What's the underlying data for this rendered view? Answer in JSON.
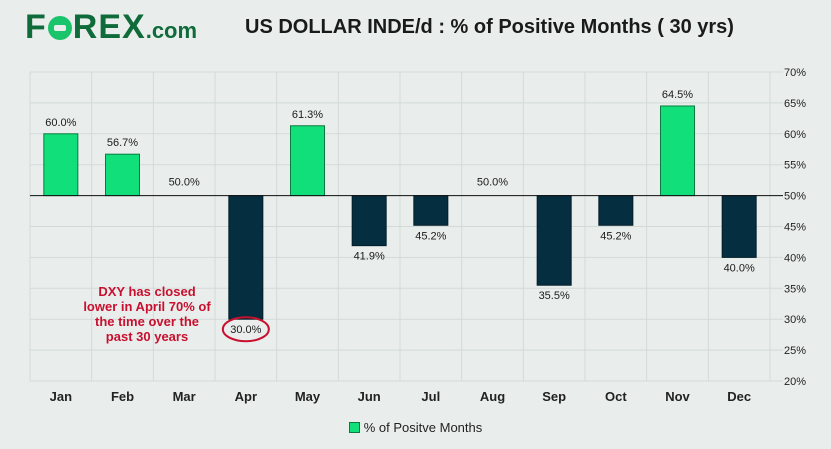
{
  "brand": {
    "logo_prefix": "F",
    "logo_rest": "REX",
    "logo_suffix": ".com"
  },
  "colors": {
    "positive": "#11e07a",
    "negative": "#052f40",
    "highlight": "#c8102e",
    "brand": "#0f6b3a"
  },
  "annotation": {
    "text": "DXY has closed lower in April 70% of the time over the past 30 years"
  },
  "chart_data": {
    "type": "bar",
    "title": "US DOLLAR INDE/d : % of Positive Months ( 30 yrs)",
    "categories": [
      "Jan",
      "Feb",
      "Mar",
      "Apr",
      "May",
      "Jun",
      "Jul",
      "Aug",
      "Sep",
      "Oct",
      "Nov",
      "Dec"
    ],
    "values": [
      60.0,
      56.7,
      50.0,
      30.0,
      61.3,
      41.9,
      45.2,
      50.0,
      35.5,
      45.2,
      64.5,
      40.0
    ],
    "value_labels": [
      "60.0%",
      "56.7%",
      "50.0%",
      "30.0%",
      "61.3%",
      "41.9%",
      "45.2%",
      "50.0%",
      "35.5%",
      "45.2%",
      "64.5%",
      "40.0%"
    ],
    "baseline": 50,
    "ylim": [
      20,
      70
    ],
    "yticks": [
      "20%",
      "25%",
      "30%",
      "35%",
      "40%",
      "45%",
      "50%",
      "55%",
      "60%",
      "65%",
      "70%"
    ],
    "ytick_values": [
      20,
      25,
      30,
      35,
      40,
      45,
      50,
      55,
      60,
      65,
      70
    ],
    "y_axis_position": "right",
    "grid": true,
    "highlighted_category": "Apr",
    "legend": {
      "label": "% of Positve Months",
      "position": "bottom-center"
    }
  }
}
